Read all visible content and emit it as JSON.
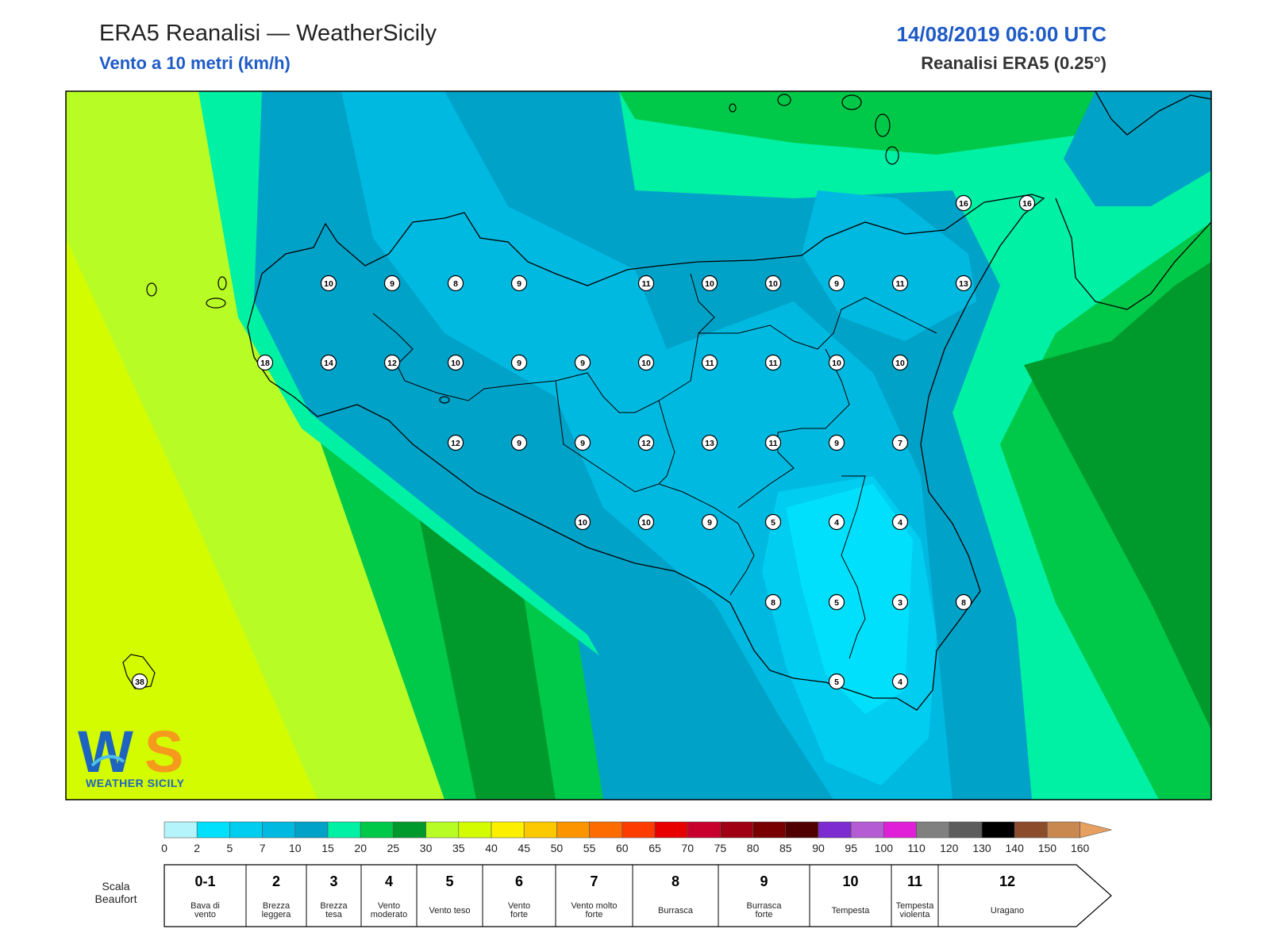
{
  "header": {
    "title": "ERA5 Reanalisi — WeatherSicily",
    "subtitle": "Vento a 10 metri (km/h)",
    "datetime": "14/08/2019 06:00 UTC",
    "source": "Reanalisi ERA5 (0.25°)"
  },
  "map": {
    "station_values": [
      {
        "v": "10"
      },
      {
        "v": "9"
      },
      {
        "v": "8"
      },
      {
        "v": "9"
      },
      {
        "v": "11"
      },
      {
        "v": "10"
      },
      {
        "v": "10"
      },
      {
        "v": "9"
      },
      {
        "v": "11"
      },
      {
        "v": "13"
      },
      {
        "v": "18"
      },
      {
        "v": "14"
      },
      {
        "v": "12"
      },
      {
        "v": "10"
      },
      {
        "v": "9"
      },
      {
        "v": "9"
      },
      {
        "v": "10"
      },
      {
        "v": "11"
      },
      {
        "v": "11"
      },
      {
        "v": "10"
      },
      {
        "v": "10"
      },
      {
        "v": "12"
      },
      {
        "v": "9"
      },
      {
        "v": "9"
      },
      {
        "v": "12"
      },
      {
        "v": "13"
      },
      {
        "v": "11"
      },
      {
        "v": "9"
      },
      {
        "v": "7"
      },
      {
        "v": "10"
      },
      {
        "v": "10"
      },
      {
        "v": "9"
      },
      {
        "v": "5"
      },
      {
        "v": "4"
      },
      {
        "v": "4"
      },
      {
        "v": "8"
      },
      {
        "v": "5"
      },
      {
        "v": "3"
      },
      {
        "v": "8"
      },
      {
        "v": "5"
      },
      {
        "v": "4"
      },
      {
        "v": "16"
      },
      {
        "v": "16"
      },
      {
        "v": "38"
      }
    ]
  },
  "colorbar": {
    "ticks": [
      "0",
      "2",
      "5",
      "7",
      "10",
      "15",
      "20",
      "25",
      "30",
      "35",
      "40",
      "45",
      "50",
      "55",
      "60",
      "65",
      "70",
      "75",
      "80",
      "85",
      "90",
      "95",
      "100",
      "110",
      "120",
      "130",
      "140",
      "150",
      "160"
    ],
    "colors": [
      "#b6f4fc",
      "#00e0fc",
      "#00cdf0",
      "#00b9e0",
      "#00a2c8",
      "#00f0a4",
      "#00c848",
      "#009a2c",
      "#b8fc26",
      "#d4fc00",
      "#fcf000",
      "#fcc800",
      "#fc9400",
      "#fc6c00",
      "#fc3c00",
      "#e80000",
      "#c8002c",
      "#a00014",
      "#780000",
      "#500000",
      "#7c2cd0",
      "#b45cd4",
      "#e020d8",
      "#808080",
      "#5c5c5c",
      "#000000",
      "#8c4c2c",
      "#c88850"
    ],
    "beaufort_label": "Scala Beaufort",
    "beaufort_label_1": "Scala",
    "beaufort_label_2": "Beaufort",
    "beaufort": [
      {
        "n": "0-1",
        "l1": "Bava di",
        "l2": "vento"
      },
      {
        "n": "2",
        "l1": "Brezza",
        "l2": "leggera"
      },
      {
        "n": "3",
        "l1": "Brezza",
        "l2": "tesa"
      },
      {
        "n": "4",
        "l1": "Vento",
        "l2": "moderato"
      },
      {
        "n": "5",
        "l1": "Vento teso",
        "l2": ""
      },
      {
        "n": "6",
        "l1": "Vento",
        "l2": "forte"
      },
      {
        "n": "7",
        "l1": "Vento molto",
        "l2": "forte"
      },
      {
        "n": "8",
        "l1": "Burrasca",
        "l2": ""
      },
      {
        "n": "9",
        "l1": "Burrasca",
        "l2": "forte"
      },
      {
        "n": "10",
        "l1": "Tempesta",
        "l2": ""
      },
      {
        "n": "11",
        "l1": "Tempesta",
        "l2": "violenta"
      },
      {
        "n": "12",
        "l1": "Uragano",
        "l2": ""
      }
    ]
  },
  "logo": {
    "letters": "WS",
    "text": "WEATHER SICILY",
    "colors": [
      "#1d63c0",
      "#4fc0e8",
      "#f59a1c"
    ]
  }
}
